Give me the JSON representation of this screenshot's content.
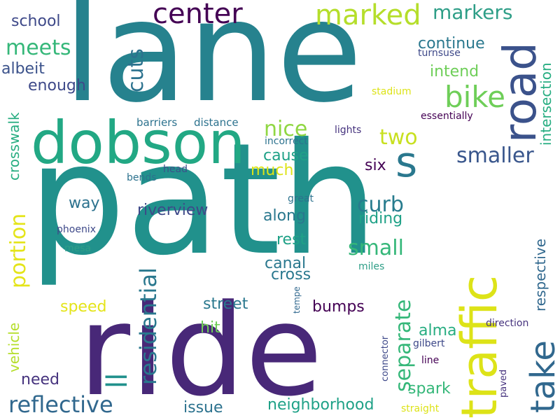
{
  "palette": {
    "teal": "#21918c",
    "teal_dark": "#26828e",
    "blue": "#31688e",
    "indigo": "#3e4989",
    "purple": "#482878",
    "deep_purple": "#440154",
    "green": "#35b779",
    "lime": "#6ece58",
    "yellow_green": "#b5de2b",
    "yellow": "#dde318",
    "mint": "#1fa187"
  },
  "words": [
    {
      "text": "path",
      "color": "#21918c",
      "size": 220,
      "rotated": false
    },
    {
      "text": "lane",
      "color": "#26828e",
      "size": 200,
      "rotated": false
    },
    {
      "text": "ride",
      "color": "#482878",
      "size": 180,
      "rotated": false
    },
    {
      "text": "dobson",
      "color": "#22a884",
      "size": 84,
      "rotated": false
    },
    {
      "text": "traffic",
      "color": "#dde318",
      "size": 70,
      "rotated": true
    },
    {
      "text": "road",
      "color": "#3b528b",
      "size": 64,
      "rotated": true
    },
    {
      "text": "s",
      "color": "#2a788e",
      "size": 60,
      "rotated": false
    },
    {
      "text": "center",
      "color": "#440154",
      "size": 40,
      "rotated": false
    },
    {
      "text": "marked",
      "color": "#b5de2b",
      "size": 40,
      "rotated": false
    },
    {
      "text": "bike",
      "color": "#6ece58",
      "size": 42,
      "rotated": false
    },
    {
      "text": "take",
      "color": "#31688e",
      "size": 48,
      "rotated": true
    },
    {
      "text": "reflective",
      "color": "#31688e",
      "size": 32,
      "rotated": false
    },
    {
      "text": "residential",
      "color": "#2a788e",
      "size": 32,
      "rotated": true
    },
    {
      "text": "ll",
      "color": "#21918c",
      "size": 40,
      "rotated": true
    },
    {
      "text": "separate",
      "color": "#35b779",
      "size": 30,
      "rotated": true
    },
    {
      "text": "cuts",
      "color": "#2c728e",
      "size": 30,
      "rotated": true
    },
    {
      "text": "smaller",
      "color": "#39568c",
      "size": 30,
      "rotated": false
    },
    {
      "text": "small",
      "color": "#35b779",
      "size": 30,
      "rotated": false
    },
    {
      "text": "meets",
      "color": "#35b779",
      "size": 30,
      "rotated": false
    },
    {
      "text": "markers",
      "color": "#2e9e87",
      "size": 28,
      "rotated": false
    },
    {
      "text": "two",
      "color": "#c8e020",
      "size": 30,
      "rotated": false
    },
    {
      "text": "nice",
      "color": "#90d743",
      "size": 30,
      "rotated": false
    },
    {
      "text": "curb",
      "color": "#287c8e",
      "size": 30,
      "rotated": false
    },
    {
      "text": "portion",
      "color": "#e4e419",
      "size": 30,
      "rotated": true
    },
    {
      "text": "neighborhood",
      "color": "#1fa187",
      "size": 22,
      "rotated": false
    },
    {
      "text": "riverview",
      "color": "#3e4989",
      "size": 22,
      "rotated": false
    },
    {
      "text": "crosswalk",
      "color": "#27ad81",
      "size": 20,
      "rotated": true
    },
    {
      "text": "intersection",
      "color": "#26ad81",
      "size": 20,
      "rotated": true
    },
    {
      "text": "respective",
      "color": "#31688e",
      "size": 20,
      "rotated": true
    },
    {
      "text": "continue",
      "color": "#2a788e",
      "size": 22,
      "rotated": false
    },
    {
      "text": "intend",
      "color": "#6ece58",
      "size": 22,
      "rotated": false
    },
    {
      "text": "riding",
      "color": "#1fa187",
      "size": 22,
      "rotated": false
    },
    {
      "text": "along",
      "color": "#2a788e",
      "size": 22,
      "rotated": false
    },
    {
      "text": "school",
      "color": "#3e4989",
      "size": 22,
      "rotated": false
    },
    {
      "text": "albeit",
      "color": "#3b528b",
      "size": 22,
      "rotated": false
    },
    {
      "text": "enough",
      "color": "#3e4989",
      "size": 22,
      "rotated": false
    },
    {
      "text": "cause",
      "color": "#1fa187",
      "size": 22,
      "rotated": false
    },
    {
      "text": "much",
      "color": "#dde318",
      "size": 22,
      "rotated": false
    },
    {
      "text": "six",
      "color": "#440154",
      "size": 22,
      "rotated": false
    },
    {
      "text": "way",
      "color": "#2c728e",
      "size": 22,
      "rotated": false
    },
    {
      "text": "rest",
      "color": "#1fa187",
      "size": 22,
      "rotated": false
    },
    {
      "text": "canal",
      "color": "#2a788e",
      "size": 22,
      "rotated": false
    },
    {
      "text": "cross",
      "color": "#2a788e",
      "size": 22,
      "rotated": false
    },
    {
      "text": "speed",
      "color": "#e4e419",
      "size": 22,
      "rotated": false
    },
    {
      "text": "street",
      "color": "#2a788e",
      "size": 22,
      "rotated": false
    },
    {
      "text": "bumps",
      "color": "#440154",
      "size": 22,
      "rotated": false
    },
    {
      "text": "hit",
      "color": "#6ece58",
      "size": 22,
      "rotated": false
    },
    {
      "text": "alma",
      "color": "#27ad81",
      "size": 22,
      "rotated": false
    },
    {
      "text": "spark",
      "color": "#35b779",
      "size": 22,
      "rotated": false
    },
    {
      "text": "need",
      "color": "#46337e",
      "size": 22,
      "rotated": false
    },
    {
      "text": "issue",
      "color": "#2c728e",
      "size": 22,
      "rotated": false
    },
    {
      "text": "vehicle",
      "color": "#b5de2b",
      "size": 20,
      "rotated": true
    },
    {
      "text": "barriers",
      "color": "#2c728e",
      "size": 15,
      "rotated": false
    },
    {
      "text": "distance",
      "color": "#2c728e",
      "size": 15,
      "rotated": false
    },
    {
      "text": "incorrect",
      "color": "#2c728e",
      "size": 14,
      "rotated": false
    },
    {
      "text": "lights",
      "color": "#46337e",
      "size": 14,
      "rotated": false
    },
    {
      "text": "head",
      "color": "#3b528b",
      "size": 14,
      "rotated": false
    },
    {
      "text": "bends",
      "color": "#2c728e",
      "size": 14,
      "rotated": false
    },
    {
      "text": "great",
      "color": "#2c728e",
      "size": 14,
      "rotated": false
    },
    {
      "text": "phoenix",
      "color": "#3e4989",
      "size": 14,
      "rotated": false
    },
    {
      "text": "mesa",
      "color": "#2e9e87",
      "size": 14,
      "rotated": false
    },
    {
      "text": "miles",
      "color": "#2e9e87",
      "size": 14,
      "rotated": false
    },
    {
      "text": "tempe",
      "color": "#31688e",
      "size": 12,
      "rotated": true
    },
    {
      "text": "connector",
      "color": "#3e4989",
      "size": 13,
      "rotated": true
    },
    {
      "text": "gilbert",
      "color": "#3e4989",
      "size": 14,
      "rotated": false
    },
    {
      "text": "direction",
      "color": "#46337e",
      "size": 14,
      "rotated": false
    },
    {
      "text": "line",
      "color": "#440154",
      "size": 14,
      "rotated": false
    },
    {
      "text": "paved",
      "color": "#46337e",
      "size": 13,
      "rotated": true
    },
    {
      "text": "straight",
      "color": "#dde318",
      "size": 14,
      "rotated": false
    },
    {
      "text": "stadium",
      "color": "#dde318",
      "size": 14,
      "rotated": false
    },
    {
      "text": "essentially",
      "color": "#440154",
      "size": 14,
      "rotated": false
    },
    {
      "text": "turnsuse",
      "color": "#3e4989",
      "size": 14,
      "rotated": false
    }
  ]
}
